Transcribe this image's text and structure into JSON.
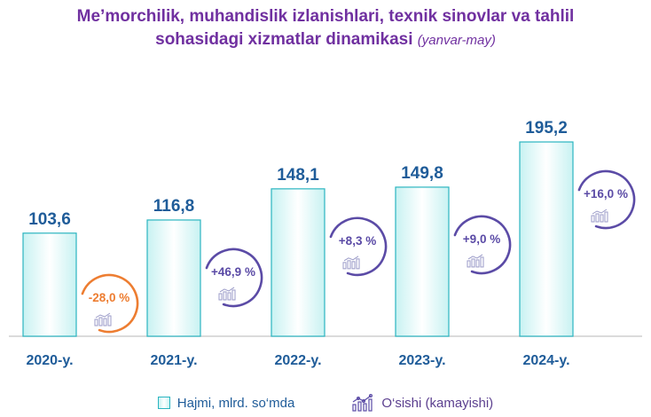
{
  "title": {
    "line1": "Me’morchilik, muhandislik izlanishlari, texnik sinovlar va tahlil",
    "line2": "sohasidagi xizmatlar dinamikasi",
    "period": "(yanvar-may)"
  },
  "legend": {
    "series_label": "Hajmi, mlrd. so‘mda",
    "growth_label": "O‘sishi (kamayishi)",
    "growth_icon": "growth-chart-icon"
  },
  "colors": {
    "title": "#7030A0",
    "bar_edge": "#2BB5C0",
    "bar_fill": "#C8F2F2",
    "value_label": "#1F5C99",
    "positive_ring": "#5B4BA6",
    "negative_ring": "#ED7D31"
  },
  "chart_data": {
    "type": "bar",
    "categories": [
      "2020-y.",
      "2021-y.",
      "2022-y.",
      "2023-y.",
      "2024-y."
    ],
    "series": [
      {
        "name": "Hajmi, mlrd. so‘mda",
        "values": [
          103.6,
          116.8,
          148.1,
          149.8,
          195.2
        ]
      }
    ],
    "value_labels": [
      "103,6",
      "116,8",
      "148,1",
      "149,8",
      "195,2"
    ],
    "growth": [
      -28.0,
      46.9,
      8.3,
      9.0,
      16.0
    ],
    "growth_labels": [
      "-28,0 %",
      "+46,9 %",
      "+8,3 %",
      "+9,0 %",
      "+16,0 %"
    ],
    "ylim": [
      0,
      200
    ],
    "grid": false,
    "legend_position": "bottom"
  }
}
